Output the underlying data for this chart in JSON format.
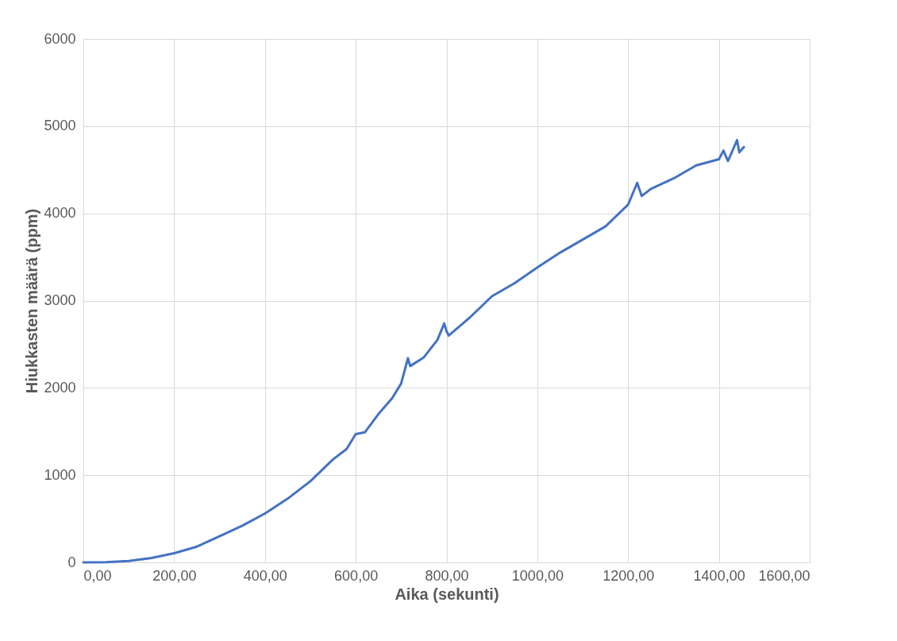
{
  "chart_data": {
    "type": "line",
    "xlabel": "Aika (sekunti)",
    "ylabel": "Hiukkasten määrä (ppm)",
    "x": [
      0,
      50,
      100,
      150,
      200,
      250,
      300,
      350,
      400,
      450,
      500,
      550,
      580,
      600,
      620,
      650,
      680,
      700,
      715,
      720,
      750,
      780,
      795,
      800,
      805,
      850,
      900,
      950,
      1000,
      1050,
      1100,
      1150,
      1200,
      1220,
      1230,
      1250,
      1300,
      1350,
      1400,
      1410,
      1420,
      1440,
      1445,
      1455
    ],
    "series": [
      {
        "color": "#4472c4",
        "values": [
          0,
          2,
          15,
          50,
          105,
          180,
          300,
          420,
          560,
          730,
          930,
          1180,
          1300,
          1470,
          1490,
          1700,
          1880,
          2050,
          2340,
          2250,
          2350,
          2550,
          2740,
          2650,
          2600,
          2800,
          3050,
          3200,
          3380,
          3550,
          3700,
          3850,
          4100,
          4350,
          4200,
          4280,
          4400,
          4550,
          4620,
          4720,
          4600,
          4840,
          4700,
          4760
        ]
      }
    ],
    "xlim": [
      0,
      1600
    ],
    "ylim": [
      0,
      6000
    ],
    "xticks": [
      {
        "value": 0,
        "label": "0,00"
      },
      {
        "value": 200,
        "label": "200,00"
      },
      {
        "value": 400,
        "label": "400,00"
      },
      {
        "value": 600,
        "label": "600,00"
      },
      {
        "value": 800,
        "label": "800,00"
      },
      {
        "value": 1000,
        "label": "1000,00"
      },
      {
        "value": 1200,
        "label": "1200,00"
      },
      {
        "value": 1400,
        "label": "1400,00"
      },
      {
        "value": 1600,
        "label": "1600,00"
      }
    ],
    "yticks": [
      0,
      1000,
      2000,
      3000,
      4000,
      5000,
      6000
    ],
    "grid": true,
    "marker": "none",
    "line_style": "solid"
  }
}
